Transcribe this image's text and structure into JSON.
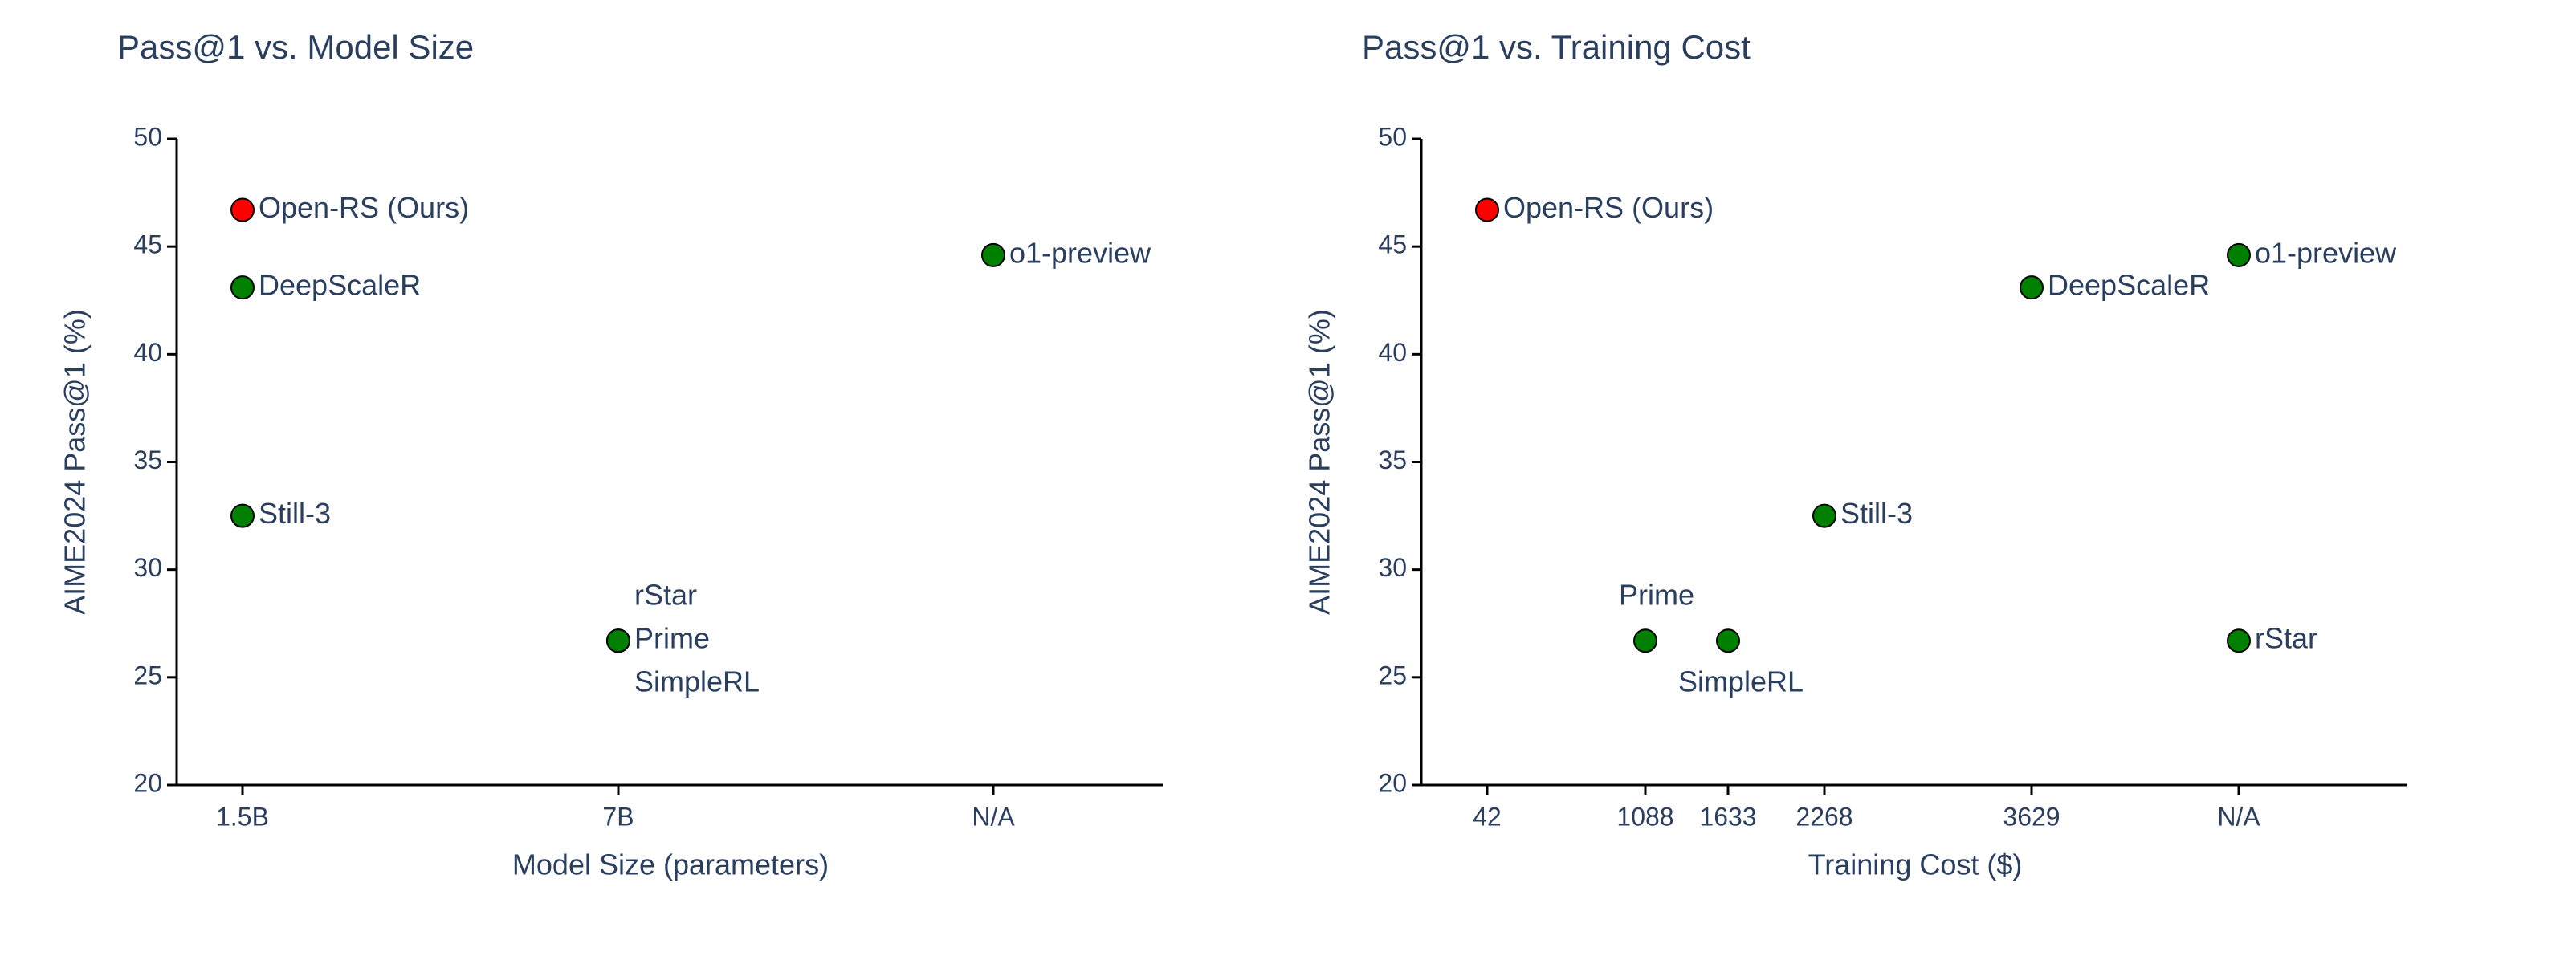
{
  "colors": {
    "text": "#2a3f5f",
    "axis": "#000000",
    "marker_highlight": "#ff0000",
    "marker_default": "#008000",
    "marker_outline": "#000000"
  },
  "chart_data": [
    {
      "type": "scatter",
      "title": "Pass@1 vs. Model Size",
      "xlabel": "Model Size (parameters)",
      "ylabel": "AIME2024 Pass@1 (%)",
      "x_axis_type": "category",
      "x_categories": [
        "1.5B",
        "7B",
        "N/A"
      ],
      "ylim": [
        20,
        50
      ],
      "yticks": [
        20,
        25,
        30,
        35,
        40,
        45,
        50
      ],
      "grid": false,
      "points": [
        {
          "label": "Open-RS (Ours)",
          "x": "1.5B",
          "y": 46.7,
          "highlight": true
        },
        {
          "label": "DeepScaleR",
          "x": "1.5B",
          "y": 43.1,
          "highlight": false
        },
        {
          "label": "Still-3",
          "x": "1.5B",
          "y": 32.5,
          "highlight": false
        },
        {
          "label": "o1-preview",
          "x": "N/A",
          "y": 44.6,
          "highlight": false
        },
        {
          "label": "rStar",
          "x": "7B",
          "y": 26.7,
          "highlight": false
        },
        {
          "label": "Prime",
          "x": "7B",
          "y": 26.7,
          "highlight": false
        },
        {
          "label": "SimpleRL",
          "x": "7B",
          "y": 26.7,
          "highlight": false
        }
      ]
    },
    {
      "type": "scatter",
      "title": "Pass@1 vs. Training Cost",
      "xlabel": "Training Cost ($)",
      "ylabel": "AIME2024 Pass@1 (%)",
      "x_axis_type": "category",
      "x_categories": [
        "42",
        "1088",
        "1633",
        "2268",
        "3629",
        "N/A"
      ],
      "ylim": [
        20,
        50
      ],
      "yticks": [
        20,
        25,
        30,
        35,
        40,
        45,
        50
      ],
      "grid": false,
      "points": [
        {
          "label": "Open-RS (Ours)",
          "x": "42",
          "y": 46.7,
          "highlight": true
        },
        {
          "label": "DeepScaleR",
          "x": "3629",
          "y": 43.1,
          "highlight": false
        },
        {
          "label": "o1-preview",
          "x": "N/A",
          "y": 44.6,
          "highlight": false
        },
        {
          "label": "Still-3",
          "x": "2268",
          "y": 32.5,
          "highlight": false
        },
        {
          "label": "Prime",
          "x": "1088",
          "y": 26.7,
          "highlight": false
        },
        {
          "label": "SimpleRL",
          "x": "1633",
          "y": 26.7,
          "highlight": false
        },
        {
          "label": "rStar",
          "x": "N/A",
          "y": 26.7,
          "highlight": false
        }
      ]
    }
  ]
}
